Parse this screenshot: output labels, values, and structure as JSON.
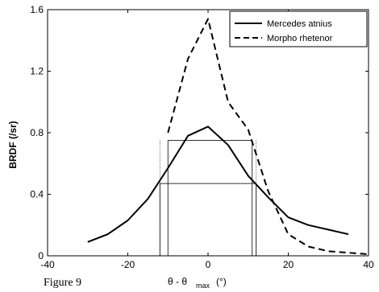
{
  "caption": "Figure 9",
  "chart_data": {
    "type": "line",
    "xlabel_main": "θ - θ",
    "xlabel_sub": "max",
    "xlabel_unit": "(°)",
    "ylabel": "BRDF (/sr)",
    "xlim": [
      -40,
      40
    ],
    "ylim": [
      0,
      1.6
    ],
    "xticks": [
      -40,
      -20,
      0,
      20,
      40
    ],
    "yticks": [
      0,
      0.4,
      0.8,
      1.2,
      1.6
    ],
    "xtick_labels": [
      "-40",
      "-20",
      "0",
      "20",
      "40"
    ],
    "ytick_labels": [
      "0",
      "0.4",
      "0.8",
      "1.2",
      "1.6"
    ],
    "grid": false,
    "legend_position": "top-right",
    "series": [
      {
        "name": "Mercedes atnius",
        "style": "solid",
        "x": [
          -30,
          -25,
          -20,
          -15,
          -10,
          -5,
          0,
          5,
          10,
          15,
          20,
          25,
          30,
          35
        ],
        "y": [
          0.09,
          0.14,
          0.23,
          0.37,
          0.57,
          0.78,
          0.84,
          0.72,
          0.52,
          0.38,
          0.25,
          0.2,
          0.17,
          0.14
        ]
      },
      {
        "name": "Morpho rhetenor",
        "style": "dashed",
        "x": [
          -10,
          -5,
          0,
          5,
          10,
          15,
          20,
          25,
          30,
          35,
          40
        ],
        "y": [
          0.8,
          1.28,
          1.54,
          1.0,
          0.82,
          0.42,
          0.14,
          0.06,
          0.03,
          0.02,
          0.01
        ]
      }
    ],
    "annotations": {
      "boxes": [
        {
          "x0": -12,
          "x1": 12,
          "y0": 0,
          "y1": 0.47,
          "style": "thin"
        },
        {
          "x0": -10,
          "x1": 11,
          "y0": 0,
          "y1": 0.75,
          "style": "thin"
        }
      ],
      "dotted_verticals": [
        -12,
        12
      ]
    }
  }
}
